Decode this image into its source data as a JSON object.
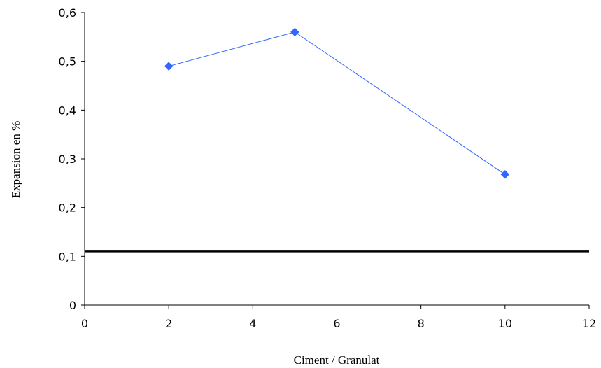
{
  "chart_data": {
    "type": "scatter",
    "title": "",
    "xlabel": "Ciment / Granulat",
    "ylabel": "Expansion en %",
    "xlim": [
      0,
      12
    ],
    "ylim": [
      0,
      0.6
    ],
    "x_ticks": [
      0,
      2,
      4,
      6,
      8,
      10,
      12
    ],
    "x_tick_labels": [
      "0",
      "2",
      "4",
      "6",
      "8",
      "10",
      "12"
    ],
    "y_ticks": [
      0,
      0.1,
      0.2,
      0.3,
      0.4,
      0.5,
      0.6
    ],
    "y_tick_labels": [
      "0",
      "0,1",
      "0,2",
      "0,3",
      "0,4",
      "0,5",
      "0,6"
    ],
    "grid": false,
    "series": [
      {
        "color": "#3366ff",
        "marker": "diamond",
        "line_style": "solid",
        "x": [
          2,
          5,
          10
        ],
        "y": [
          0.49,
          0.56,
          0.268
        ]
      }
    ],
    "reference_lines": [
      {
        "orientation": "horizontal",
        "y": 0.11,
        "color": "#000000"
      }
    ]
  }
}
